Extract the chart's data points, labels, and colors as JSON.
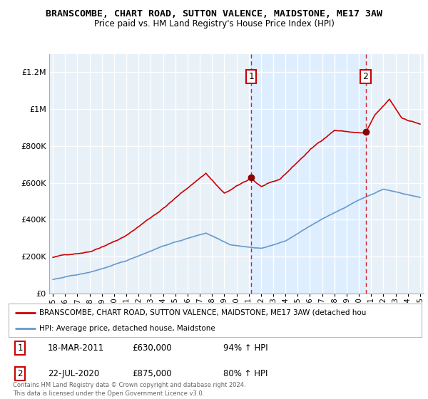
{
  "title": "BRANSCOMBE, CHART ROAD, SUTTON VALENCE, MAIDSTONE, ME17 3AW",
  "subtitle": "Price paid vs. HM Land Registry's House Price Index (HPI)",
  "background_color": "#ddeeff",
  "plot_bg_color": "#e8f0f8",
  "shade_color": "#ddeeff",
  "ylim": [
    0,
    1300000
  ],
  "yticks": [
    0,
    200000,
    400000,
    600000,
    800000,
    1000000,
    1200000
  ],
  "ytick_labels": [
    "£0",
    "£200K",
    "£400K",
    "£600K",
    "£800K",
    "£1M",
    "£1.2M"
  ],
  "red_line_color": "#cc0000",
  "blue_line_color": "#6699cc",
  "sale1_year": 2011.21,
  "sale1_price": 630000,
  "sale2_year": 2020.55,
  "sale2_price": 875000,
  "xmin": 1994.7,
  "xmax": 2025.3,
  "legend_red_label": "BRANSCOMBE, CHART ROAD, SUTTON VALENCE, MAIDSTONE, ME17 3AW (detached hou",
  "legend_blue_label": "HPI: Average price, detached house, Maidstone",
  "annotation1_date": "18-MAR-2011",
  "annotation1_price": "£630,000",
  "annotation1_hpi": "94% ↑ HPI",
  "annotation2_date": "22-JUL-2020",
  "annotation2_price": "£875,000",
  "annotation2_hpi": "80% ↑ HPI",
  "footer": "Contains HM Land Registry data © Crown copyright and database right 2024.\nThis data is licensed under the Open Government Licence v3.0."
}
